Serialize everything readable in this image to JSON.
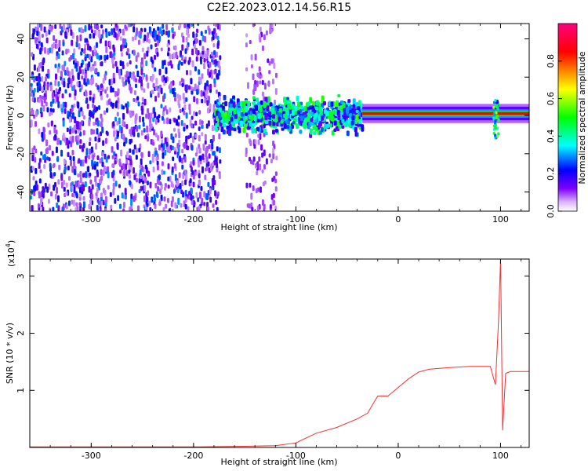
{
  "title": "C2E2.2023.012.14.56.R15",
  "chart_data": [
    {
      "type": "heatmap",
      "xlabel": "Height of straight line (km)",
      "ylabel": "Frequency (Hz)",
      "xlim": [
        -360,
        128
      ],
      "ylim": [
        -50,
        48
      ],
      "xticks": [
        -300,
        -200,
        -100,
        0,
        100
      ],
      "yticks": [
        -40,
        -20,
        0,
        20,
        40
      ],
      "colorbar": {
        "label": "Normalized spectral amplitude",
        "range": [
          0,
          1
        ],
        "ticks": [
          0.0,
          0.2,
          0.4,
          0.6,
          0.8
        ],
        "colors": [
          "#ffffff",
          "#cc99ff",
          "#8000ff",
          "#0000ff",
          "#00ffff",
          "#00ff00",
          "#ffff00",
          "#ff0000",
          "#ff0080"
        ]
      },
      "features": [
        {
          "region": "noise",
          "x_range": [
            -360,
            -175
          ],
          "freq_range": [
            -50,
            48
          ],
          "amplitude": 0.3
        },
        {
          "region": "noise",
          "x_range": [
            -150,
            -120
          ],
          "freq_range": [
            -50,
            48
          ],
          "amplitude": 0.15
        },
        {
          "region": "signal",
          "x_range": [
            -180,
            -35
          ],
          "freq_center": 0,
          "freq_halfwidth": 8,
          "amplitude": 0.45
        },
        {
          "region": "carrier",
          "x_range": [
            -35,
            128
          ],
          "freq_center": 1,
          "freq_halfwidth": 2,
          "amplitude": 0.85
        },
        {
          "region": "spike",
          "x": 95,
          "freq_range": [
            -12,
            8
          ],
          "amplitude": 0.5
        }
      ]
    },
    {
      "type": "line",
      "xlabel": "Height of straight line (km)",
      "ylabel": "SNR (10 * v/v)",
      "yscale_label": "(x10",
      "yscale_exp": "4",
      "yscale_suffix": ")",
      "xlim": [
        -360,
        128
      ],
      "ylim": [
        0,
        3.3
      ],
      "xticks": [
        -300,
        -200,
        -100,
        0,
        100
      ],
      "yticks": [
        1,
        2,
        3
      ],
      "line_color": "#ee3333",
      "series": [
        {
          "x": [
            -360,
            -200,
            -150,
            -120,
            -100,
            -80,
            -60,
            -40,
            -30,
            -20,
            -10,
            0,
            10,
            20,
            30,
            50,
            70,
            90,
            95,
            98,
            100,
            102,
            105,
            110,
            128
          ],
          "y": [
            0.01,
            0.01,
            0.02,
            0.03,
            0.08,
            0.25,
            0.35,
            0.5,
            0.6,
            0.9,
            0.9,
            1.05,
            1.2,
            1.32,
            1.37,
            1.4,
            1.42,
            1.42,
            1.1,
            2.2,
            3.3,
            0.3,
            1.3,
            1.33,
            1.33
          ]
        }
      ]
    }
  ]
}
